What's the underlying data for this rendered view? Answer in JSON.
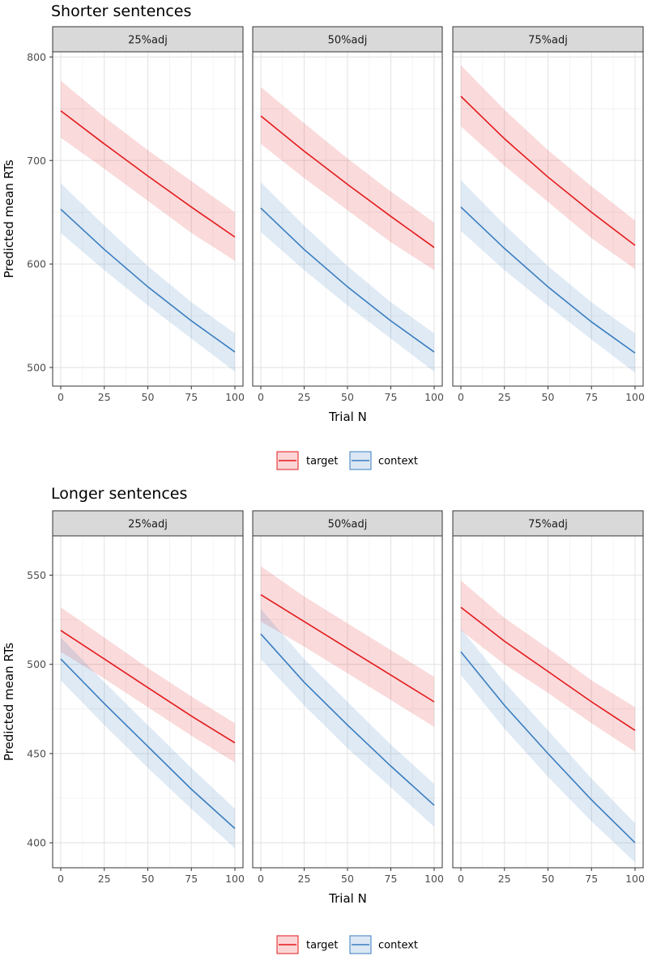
{
  "chart_data": [
    {
      "type": "line",
      "title": "Shorter sentences",
      "xlabel": "Trial N",
      "ylabel": "Predicted mean RTs",
      "xlim": [
        0,
        100
      ],
      "ylim": [
        482,
        805
      ],
      "xticks": [
        0,
        25,
        50,
        75,
        100
      ],
      "yticks": [
        500,
        600,
        700,
        800
      ],
      "grid": true,
      "legend_position": "bottom",
      "x": [
        0,
        25,
        50,
        75,
        100
      ],
      "panels": [
        {
          "label": "25%adj",
          "series": [
            {
              "name": "target",
              "values": [
                748,
                716,
                685,
                655,
                626
              ],
              "lower": [
                722,
                692,
                661,
                630,
                603
              ],
              "upper": [
                777,
                742,
                710,
                680,
                650
              ]
            },
            {
              "name": "context",
              "values": [
                653,
                614,
                578,
                545,
                515
              ],
              "lower": [
                630,
                594,
                560,
                528,
                496
              ],
              "upper": [
                678,
                637,
                598,
                563,
                533
              ]
            }
          ]
        },
        {
          "label": "50%adj",
          "series": [
            {
              "name": "target",
              "values": [
                743,
                709,
                677,
                646,
                616
              ],
              "lower": [
                716,
                683,
                652,
                621,
                594
              ],
              "upper": [
                771,
                736,
                702,
                670,
                640
              ]
            },
            {
              "name": "context",
              "values": [
                654,
                614,
                578,
                545,
                515
              ],
              "lower": [
                631,
                594,
                560,
                528,
                496
              ],
              "upper": [
                679,
                637,
                598,
                563,
                533
              ]
            }
          ]
        },
        {
          "label": "75%adj",
          "series": [
            {
              "name": "target",
              "values": [
                762,
                721,
                684,
                650,
                618
              ],
              "lower": [
                733,
                695,
                660,
                625,
                595
              ],
              "upper": [
                792,
                749,
                710,
                675,
                642
              ]
            },
            {
              "name": "context",
              "values": [
                655,
                615,
                578,
                544,
                514
              ],
              "lower": [
                632,
                594,
                560,
                527,
                495
              ],
              "upper": [
                681,
                638,
                598,
                563,
                533
              ]
            }
          ]
        }
      ],
      "legend": [
        {
          "name": "target",
          "color": "#e31a1c",
          "fill": "#fbd5d6"
        },
        {
          "name": "context",
          "color": "#3a7dbf",
          "fill": "#dbe7f3"
        }
      ]
    },
    {
      "type": "line",
      "title": "Longer sentences",
      "xlabel": "Trial N",
      "ylabel": "Predicted mean RTs",
      "xlim": [
        0,
        100
      ],
      "ylim": [
        386,
        572
      ],
      "xticks": [
        0,
        25,
        50,
        75,
        100
      ],
      "yticks": [
        400,
        450,
        500,
        550
      ],
      "grid": true,
      "legend_position": "bottom",
      "x": [
        0,
        25,
        50,
        75,
        100
      ],
      "panels": [
        {
          "label": "25%adj",
          "series": [
            {
              "name": "target",
              "values": [
                519,
                503,
                487,
                471,
                456
              ],
              "lower": [
                507,
                492,
                476,
                460,
                445
              ],
              "upper": [
                532,
                515,
                498,
                482,
                467
              ]
            },
            {
              "name": "context",
              "values": [
                503,
                478,
                454,
                430,
                408
              ],
              "lower": [
                491,
                466,
                442,
                419,
                397
              ],
              "upper": [
                515,
                490,
                466,
                442,
                419
              ]
            }
          ]
        },
        {
          "label": "50%adj",
          "series": [
            {
              "name": "target",
              "values": [
                539,
                524,
                509,
                494,
                479
              ],
              "lower": [
                524,
                510,
                495,
                480,
                465
              ],
              "upper": [
                555,
                538,
                523,
                508,
                493
              ]
            },
            {
              "name": "context",
              "values": [
                517,
                490,
                466,
                443,
                421
              ],
              "lower": [
                503,
                477,
                453,
                431,
                409
              ],
              "upper": [
                531,
                503,
                479,
                455,
                433
              ]
            }
          ]
        },
        {
          "label": "75%adj",
          "series": [
            {
              "name": "target",
              "values": [
                532,
                513,
                496,
                479,
                463
              ],
              "lower": [
                519,
                500,
                484,
                467,
                451
              ],
              "upper": [
                547,
                526,
                509,
                491,
                476
              ]
            },
            {
              "name": "context",
              "values": [
                507,
                477,
                450,
                424,
                400
              ],
              "lower": [
                494,
                464,
                437,
                412,
                389
              ],
              "upper": [
                520,
                490,
                463,
                436,
                411
              ]
            }
          ]
        }
      ],
      "legend": [
        {
          "name": "target",
          "color": "#e31a1c",
          "fill": "#fbd5d6"
        },
        {
          "name": "context",
          "color": "#3a7dbf",
          "fill": "#dbe7f3"
        }
      ]
    }
  ]
}
